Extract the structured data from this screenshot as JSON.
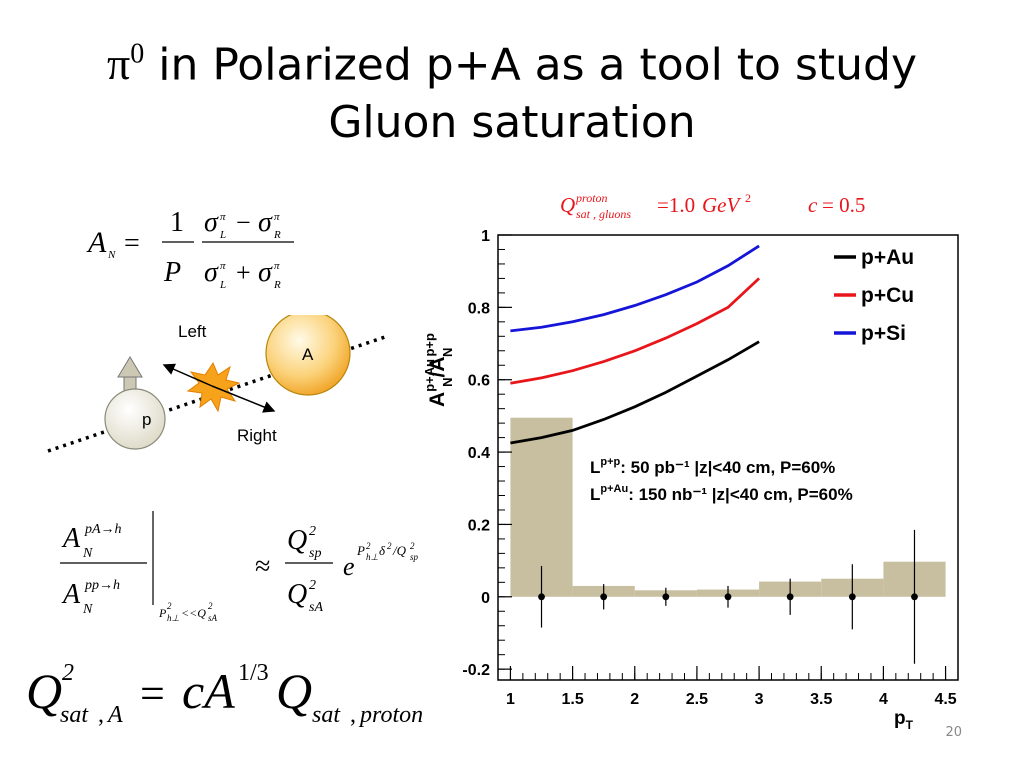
{
  "slide": {
    "title_symbol": "π",
    "title_symbol_sup": "0",
    "title_line1_rest": " in Polarized p+A as a tool to study",
    "title_line2": "Gluon saturation",
    "slide_number": "20"
  },
  "diagram": {
    "left_label": "Left",
    "right_label": "Right",
    "nucleus_label": "A",
    "proton_label": "p"
  },
  "chart_data": {
    "type": "line",
    "title": "",
    "annotation_top": "Q_sat,gluons^proton = 1.0 GeV² c = 0.5",
    "xlabel": "p_T",
    "ylabel": "A_N^(p+Au) / A_N^(p+p)",
    "xlim": [
      0.9,
      4.6
    ],
    "ylim": [
      -0.23,
      1.0
    ],
    "x_ticks": [
      "1",
      "1.5",
      "2",
      "2.5",
      "3",
      "3.5",
      "4",
      "4.5"
    ],
    "y_ticks": [
      "-0.2",
      "0",
      "0.2",
      "0.4",
      "0.6",
      "0.8",
      "1"
    ],
    "legend_position": "top-right",
    "series": [
      {
        "name": "p+Au",
        "color": "#000000",
        "x": [
          1.0,
          1.25,
          1.5,
          1.75,
          2.0,
          2.25,
          2.5,
          2.75,
          3.0
        ],
        "y": [
          0.425,
          0.44,
          0.46,
          0.49,
          0.525,
          0.565,
          0.61,
          0.655,
          0.705
        ]
      },
      {
        "name": "p+Cu",
        "color": "#e8161b",
        "x": [
          1.0,
          1.25,
          1.5,
          1.75,
          2.0,
          2.25,
          2.5,
          2.75,
          3.0
        ],
        "y": [
          0.59,
          0.605,
          0.625,
          0.65,
          0.68,
          0.715,
          0.755,
          0.8,
          0.88
        ]
      },
      {
        "name": "p+Si",
        "color": "#1515d8",
        "x": [
          1.0,
          1.25,
          1.5,
          1.75,
          2.0,
          2.25,
          2.5,
          2.75,
          3.0
        ],
        "y": [
          0.735,
          0.745,
          0.76,
          0.78,
          0.805,
          0.835,
          0.87,
          0.915,
          0.97
        ]
      }
    ],
    "histogram": {
      "color": "#c8bfa0",
      "bins": [
        {
          "x0": 1.0,
          "x1": 1.5,
          "value": 0.495
        },
        {
          "x0": 1.5,
          "x1": 2.0,
          "value": 0.03
        },
        {
          "x0": 2.0,
          "x1": 2.5,
          "value": 0.018
        },
        {
          "x0": 2.5,
          "x1": 3.0,
          "value": 0.02
        },
        {
          "x0": 3.0,
          "x1": 3.5,
          "value": 0.042
        },
        {
          "x0": 3.5,
          "x1": 4.0,
          "value": 0.05
        },
        {
          "x0": 4.0,
          "x1": 4.5,
          "value": 0.097
        }
      ]
    },
    "points": [
      {
        "x": 1.25,
        "y": 0.0,
        "err": 0.085
      },
      {
        "x": 1.75,
        "y": 0.0,
        "err": 0.035
      },
      {
        "x": 2.25,
        "y": 0.0,
        "err": 0.025
      },
      {
        "x": 2.75,
        "y": 0.0,
        "err": 0.03
      },
      {
        "x": 3.25,
        "y": 0.0,
        "err": 0.05
      },
      {
        "x": 3.75,
        "y": 0.0,
        "err": 0.09
      },
      {
        "x": 4.25,
        "y": 0.0,
        "err": 0.185
      }
    ],
    "lumi_lines": [
      {
        "label": "L",
        "sup": "p+p",
        "text": ":   50 pb⁻¹ |z|<40 cm, P=60%"
      },
      {
        "label": "L",
        "sup": "p+Au",
        "text": ": 150 nb⁻¹ |z|<40 cm, P=60%"
      }
    ]
  }
}
